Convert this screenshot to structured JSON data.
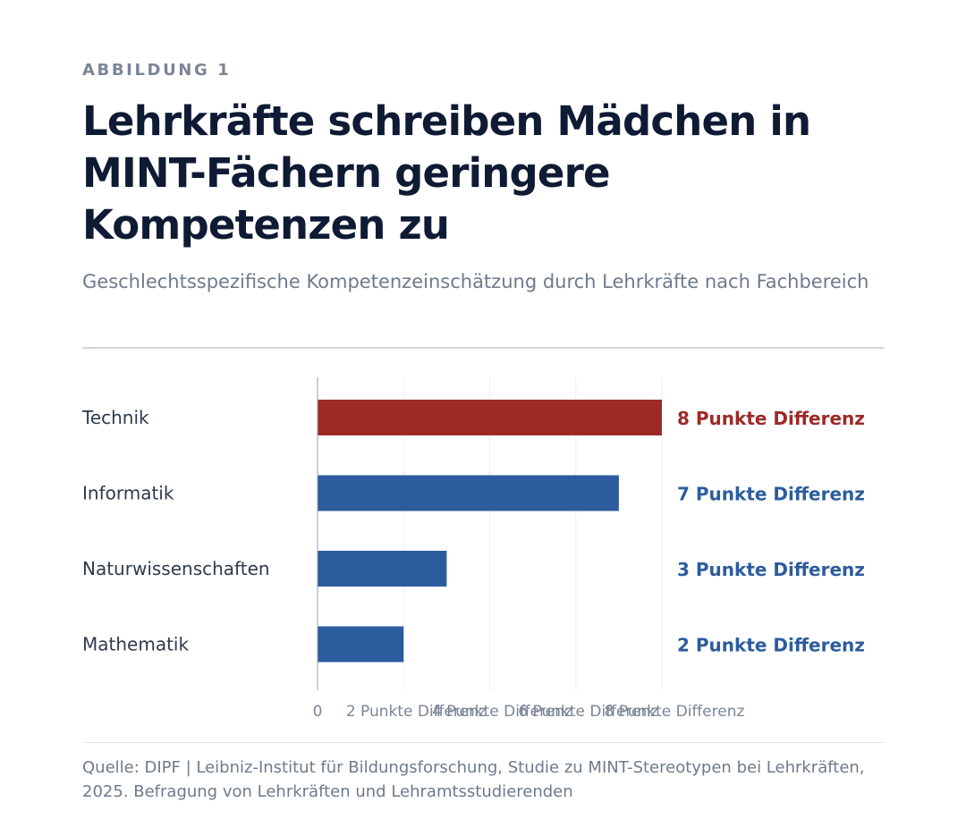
{
  "eyebrow": "ABBILDUNG 1",
  "title": "Lehrkräfte schreiben Mädchen in MINT-Fächern geringere Kompetenzen zu",
  "subtitle": "Geschlechtsspezifische Kompetenzeinschätzung durch Lehrkräfte nach Fachbereich",
  "source": "Quelle: DIPF | Leibniz-Institut für Bildungsforschung, Studie zu MINT-Stereotypen bei Lehrkräften, 2025. Befragung von Lehrkräften und Lehramtsstudierenden",
  "colors": {
    "highlight": "#9e2a26",
    "default": "#2c5c9e",
    "grid": "#eceef1",
    "axis": "#9aa1ab",
    "tick_text": "#7b8596",
    "category_text": "#2f3a4d"
  },
  "chart_data": {
    "type": "bar",
    "orientation": "horizontal",
    "categories": [
      "Technik",
      "Informatik",
      "Naturwissenschaften",
      "Mathematik"
    ],
    "values": [
      8,
      7,
      3,
      2
    ],
    "value_labels": [
      "8 Punkte Differenz",
      "7 Punkte Differenz",
      "3 Punkte Differenz",
      "2 Punkte Differenz"
    ],
    "highlighted_index": 0,
    "xlim": [
      0,
      8
    ],
    "x_ticks": [
      0,
      2,
      4,
      6,
      8
    ],
    "x_tick_labels": [
      "0",
      "2 Punkte Differenz",
      "4 Punkte Differenz",
      "6 Punkte Differenz",
      "8 Punkte Differenz"
    ],
    "grid": true,
    "legend": "none"
  }
}
